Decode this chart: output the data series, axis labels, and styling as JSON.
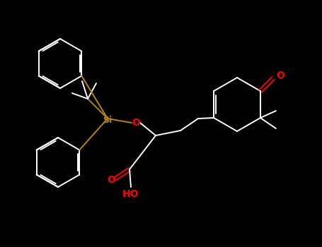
{
  "bg_color": "#000000",
  "bond_color": "#ffffff",
  "heteroatom_color": "#ff0000",
  "si_color": "#b8860b",
  "si_label": "Si",
  "o_label": "O",
  "ho_label": "HO",
  "carbonyl_o": "O"
}
